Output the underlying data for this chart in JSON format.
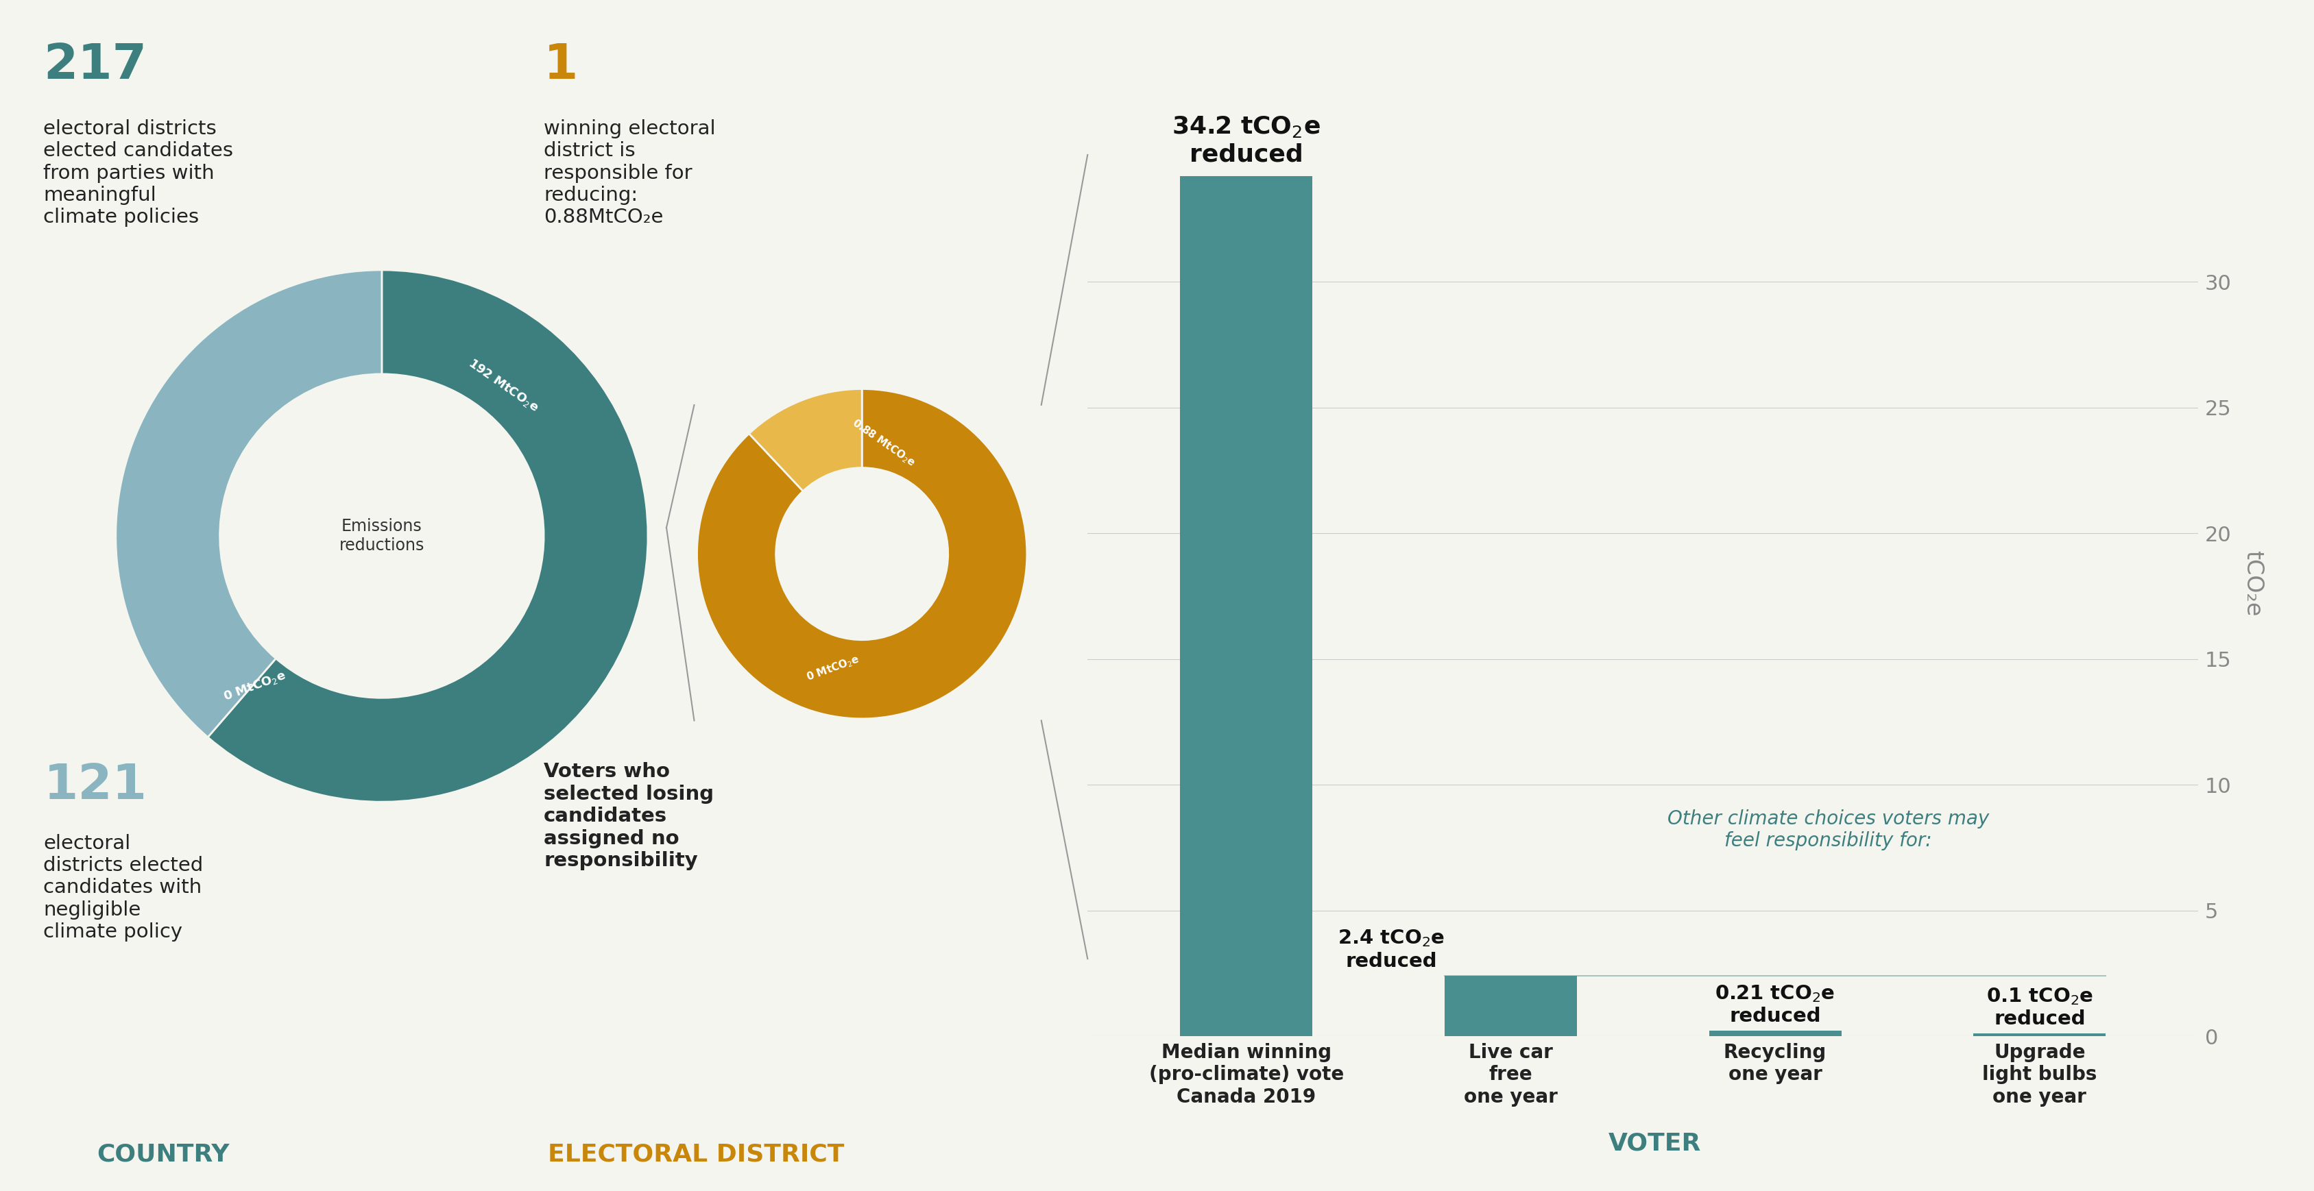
{
  "bg_color": "#f5f5f0",
  "teal_dark": "#3d7f7f",
  "teal_light": "#8ab5c0",
  "gold_dark": "#c8860a",
  "gold_light": "#e8b84b",
  "gray_text": "#888888",
  "bar_color": "#4a8f8f",
  "bar_values": [
    34.2,
    2.4,
    0.21,
    0.1
  ],
  "bar_labels": [
    "Median winning\n(pro-climate) vote\nCanada 2019",
    "Live car\nfree\none year",
    "Recycling\none year",
    "Upgrade\nlight bulbs\none year"
  ],
  "ylabel": "tCO₂e",
  "yticks": [
    0,
    5,
    10,
    15,
    20,
    25,
    30
  ],
  "ylim": [
    0,
    36
  ],
  "country_number": "217",
  "country_text": "electoral districts\nelected candidates\nfrom parties with\nmeaningful\nclimate policies",
  "country_number2": "121",
  "country_text2": "electoral\ndistricts elected\ncandidates with\nnegligible\nclimate policy",
  "country_label": "COUNTRY",
  "electoral_number": "1",
  "electoral_text": "winning electoral\ndistrict is\nresponsible for\nreducing:\n0.88MtCO₂e",
  "electoral_text2": "Voters who\nselected losing\ncandidates\nassigned no\nresponsibility",
  "electoral_label": "ELECTORAL DISTRICT",
  "voter_label": "VOTER",
  "donut1_vals": [
    192,
    121
  ],
  "donut1_colors": [
    "#3d7f7f",
    "#8ab5c0"
  ],
  "donut1_center": "Emissions\nreductions",
  "donut2_vals": [
    0.88,
    0.12
  ],
  "donut2_colors": [
    "#c8860a",
    "#e8b84b"
  ],
  "other_choices_text": "Other climate choices voters may\nfeel responsibility for:",
  "fig_width": 33.75,
  "fig_height": 17.38,
  "line_color": "#aaaaaa",
  "connect_line_color": "#999999"
}
